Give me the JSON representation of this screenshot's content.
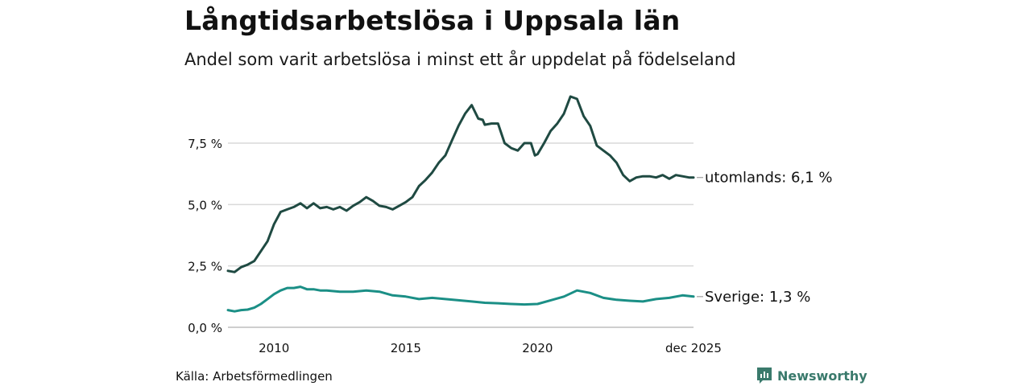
{
  "header": {
    "title": "Långtidsarbetslösa i Uppsala län",
    "subtitle": "Andel som varit arbetslösa i minst ett år uppdelat på födelseland"
  },
  "footer": {
    "source": "Källa: Arbetsförmedlingen",
    "brand": "Newsworthy"
  },
  "chart_data": {
    "type": "line",
    "title": "Långtidsarbetslösa i Uppsala län",
    "subtitle": "Andel som varit arbetslösa i minst ett år uppdelat på födelseland",
    "xlabel": "",
    "ylabel": "",
    "xlim": [
      2008.25,
      2025.92
    ],
    "ylim": [
      0,
      9.5
    ],
    "x_ticks": [
      {
        "value": 2010,
        "label": "2010"
      },
      {
        "value": 2015,
        "label": "2015"
      },
      {
        "value": 2020,
        "label": "2020"
      },
      {
        "value": 2025.92,
        "label": "dec 2025"
      }
    ],
    "y_ticks": [
      {
        "value": 0,
        "label": "0,0 %"
      },
      {
        "value": 2.5,
        "label": "2,5 %"
      },
      {
        "value": 5.0,
        "label": "5,0 %"
      },
      {
        "value": 7.5,
        "label": "7,5 %"
      }
    ],
    "grid": true,
    "legend": "direct labels at right end of lines",
    "colors": {
      "utomlands": "#1f4a42",
      "sverige": "#1b8f86",
      "grid": "#d9d9d9",
      "brand": "#3a7a6c"
    },
    "series": [
      {
        "name": "utomlands",
        "end_label": "utomlands: 6,1 %",
        "x": [
          2008.25,
          2008.5,
          2008.75,
          2009.0,
          2009.25,
          2009.5,
          2009.75,
          2010.0,
          2010.25,
          2010.5,
          2010.75,
          2011.0,
          2011.25,
          2011.5,
          2011.75,
          2012.0,
          2012.25,
          2012.5,
          2012.75,
          2013.0,
          2013.25,
          2013.5,
          2013.75,
          2014.0,
          2014.25,
          2014.5,
          2014.75,
          2015.0,
          2015.25,
          2015.5,
          2015.75,
          2016.0,
          2016.25,
          2016.5,
          2016.75,
          2017.0,
          2017.25,
          2017.5,
          2017.75,
          2017.92,
          2018.0,
          2018.25,
          2018.5,
          2018.75,
          2019.0,
          2019.25,
          2019.5,
          2019.75,
          2019.9,
          2020.0,
          2020.25,
          2020.5,
          2020.75,
          2021.0,
          2021.25,
          2021.5,
          2021.75,
          2022.0,
          2022.25,
          2022.5,
          2022.75,
          2023.0,
          2023.25,
          2023.5,
          2023.75,
          2024.0,
          2024.25,
          2024.5,
          2024.75,
          2025.0,
          2025.25,
          2025.5,
          2025.75,
          2025.92
        ],
        "values": [
          2.3,
          2.25,
          2.45,
          2.55,
          2.7,
          3.1,
          3.5,
          4.2,
          4.7,
          4.8,
          4.9,
          5.05,
          4.85,
          5.05,
          4.85,
          4.9,
          4.8,
          4.9,
          4.75,
          4.95,
          5.1,
          5.3,
          5.15,
          4.95,
          4.9,
          4.8,
          4.95,
          5.1,
          5.3,
          5.75,
          6.0,
          6.3,
          6.7,
          7.0,
          7.6,
          8.2,
          8.7,
          9.05,
          8.5,
          8.45,
          8.25,
          8.3,
          8.3,
          7.5,
          7.3,
          7.2,
          7.5,
          7.5,
          7.0,
          7.05,
          7.5,
          8.0,
          8.3,
          8.7,
          9.4,
          9.3,
          8.6,
          8.2,
          7.4,
          7.2,
          7.0,
          6.7,
          6.2,
          5.95,
          6.1,
          6.15,
          6.15,
          6.1,
          6.2,
          6.05,
          6.2,
          6.15,
          6.1,
          6.1
        ]
      },
      {
        "name": "Sverige",
        "end_label": "Sverige: 1,3 %",
        "x": [
          2008.25,
          2008.5,
          2008.75,
          2009.0,
          2009.25,
          2009.5,
          2009.75,
          2010.0,
          2010.25,
          2010.5,
          2010.75,
          2011.0,
          2011.25,
          2011.5,
          2011.75,
          2012.0,
          2012.5,
          2013.0,
          2013.5,
          2014.0,
          2014.5,
          2015.0,
          2015.5,
          2016.0,
          2016.5,
          2017.0,
          2017.5,
          2018.0,
          2018.5,
          2019.0,
          2019.5,
          2020.0,
          2020.5,
          2021.0,
          2021.5,
          2022.0,
          2022.5,
          2023.0,
          2023.5,
          2024.0,
          2024.5,
          2025.0,
          2025.5,
          2025.92
        ],
        "values": [
          0.7,
          0.65,
          0.7,
          0.72,
          0.8,
          0.95,
          1.15,
          1.35,
          1.5,
          1.6,
          1.6,
          1.65,
          1.55,
          1.55,
          1.5,
          1.5,
          1.45,
          1.45,
          1.5,
          1.45,
          1.3,
          1.25,
          1.15,
          1.2,
          1.15,
          1.1,
          1.05,
          1.0,
          0.98,
          0.95,
          0.93,
          0.95,
          1.1,
          1.25,
          1.5,
          1.4,
          1.2,
          1.12,
          1.08,
          1.05,
          1.15,
          1.2,
          1.3,
          1.25
        ]
      }
    ]
  }
}
